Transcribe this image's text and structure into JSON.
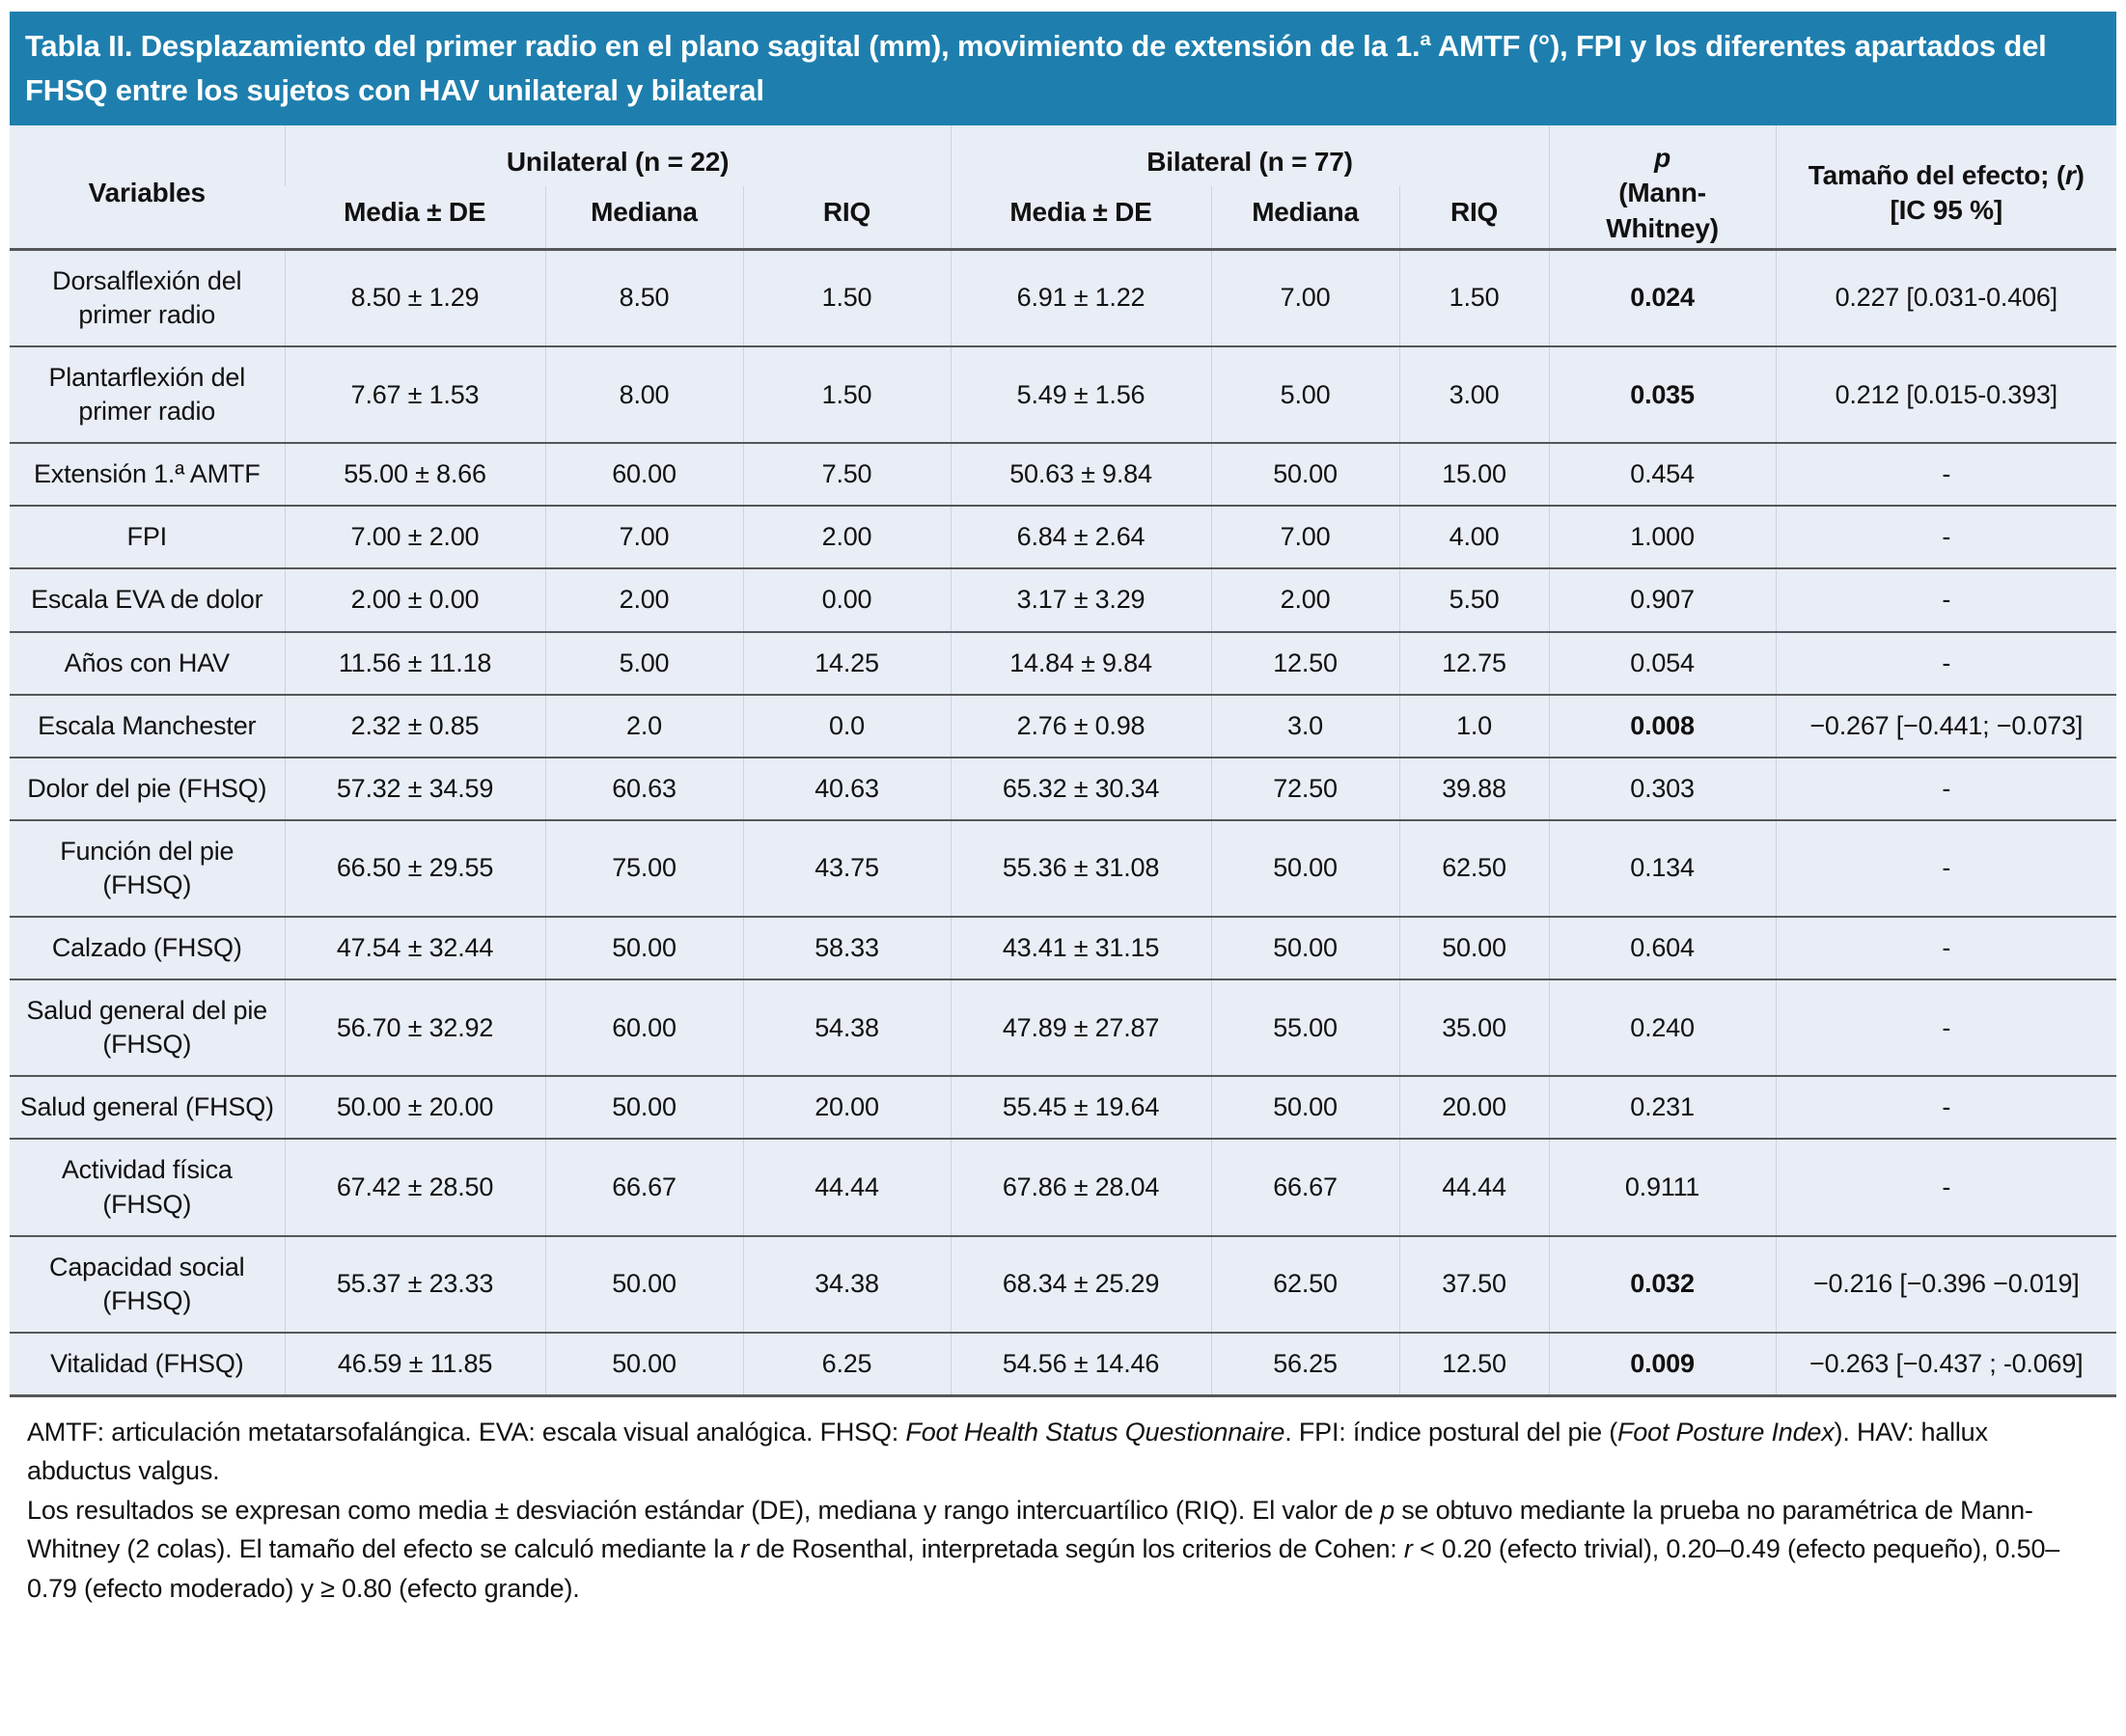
{
  "colors": {
    "header_bar": "#1e7fae",
    "table_background": "#e9edf6",
    "row_line": "#55565a"
  },
  "table": {
    "title": "Tabla II. Desplazamiento del primer radio en el plano sagital (mm), movimiento de extensión de la 1.ª AMTF (°), FPI y los diferentes apartados del FHSQ entre los sujetos con HAV unilateral y bilateral",
    "headers": {
      "variables": "Variables",
      "unilateral": "Unilateral (n = 22)",
      "bilateral": "Bilateral (n = 77)",
      "p_symbol": "p",
      "p_test": "(Mann-Whitney)",
      "effect_pre": "Tamaño del efecto; (",
      "effect_symbol": "r",
      "effect_post": ")",
      "effect_ci": "[IC 95 %]"
    },
    "sub_headers": [
      "Media ± DE",
      "Mediana",
      "RIQ",
      "Media ± DE",
      "Mediana",
      "RIQ"
    ],
    "rows": [
      {
        "label": "Dorsalflexión del primer radio",
        "uni": [
          "8.50 ± 1.29",
          "8.50",
          "1.50"
        ],
        "bil": [
          "6.91 ± 1.22",
          "7.00",
          "1.50"
        ],
        "p": "0.024",
        "p_bold": true,
        "effect": "0.227 [0.031-0.406]"
      },
      {
        "label": "Plantarflexión del primer radio",
        "uni": [
          "7.67 ± 1.53",
          "8.00",
          "1.50"
        ],
        "bil": [
          "5.49 ± 1.56",
          "5.00",
          "3.00"
        ],
        "p": "0.035",
        "p_bold": true,
        "effect": "0.212 [0.015-0.393]"
      },
      {
        "label": "Extensión 1.ª AMTF",
        "uni": [
          "55.00 ± 8.66",
          "60.00",
          "7.50"
        ],
        "bil": [
          "50.63 ± 9.84",
          "50.00",
          "15.00"
        ],
        "p": "0.454",
        "p_bold": false,
        "effect": "-"
      },
      {
        "label": "FPI",
        "uni": [
          "7.00 ± 2.00",
          "7.00",
          "2.00"
        ],
        "bil": [
          "6.84 ± 2.64",
          "7.00",
          "4.00"
        ],
        "p": "1.000",
        "p_bold": false,
        "effect": "-"
      },
      {
        "label": "Escala EVA de dolor",
        "uni": [
          "2.00 ± 0.00",
          "2.00",
          "0.00"
        ],
        "bil": [
          "3.17 ± 3.29",
          "2.00",
          "5.50"
        ],
        "p": "0.907",
        "p_bold": false,
        "effect": "-"
      },
      {
        "label": "Años con HAV",
        "uni": [
          "11.56 ± 11.18",
          "5.00",
          "14.25"
        ],
        "bil": [
          "14.84 ± 9.84",
          "12.50",
          "12.75"
        ],
        "p": "0.054",
        "p_bold": false,
        "effect": "-"
      },
      {
        "label": "Escala Manchester",
        "uni": [
          "2.32 ± 0.85",
          "2.0",
          "0.0"
        ],
        "bil": [
          "2.76 ± 0.98",
          "3.0",
          "1.0"
        ],
        "p": "0.008",
        "p_bold": true,
        "effect": "−0.267 [−0.441; −0.073]"
      },
      {
        "label": "Dolor del pie (FHSQ)",
        "uni": [
          "57.32 ± 34.59",
          "60.63",
          "40.63"
        ],
        "bil": [
          "65.32 ± 30.34",
          "72.50",
          "39.88"
        ],
        "p": "0.303",
        "p_bold": false,
        "effect": "-"
      },
      {
        "label": "Función del pie (FHSQ)",
        "uni": [
          "66.50 ± 29.55",
          "75.00",
          "43.75"
        ],
        "bil": [
          "55.36 ± 31.08",
          "50.00",
          "62.50"
        ],
        "p": "0.134",
        "p_bold": false,
        "effect": "-"
      },
      {
        "label": "Calzado (FHSQ)",
        "uni": [
          "47.54 ± 32.44",
          "50.00",
          "58.33"
        ],
        "bil": [
          "43.41 ± 31.15",
          "50.00",
          "50.00"
        ],
        "p": "0.604",
        "p_bold": false,
        "effect": "-"
      },
      {
        "label": "Salud general del pie (FHSQ)",
        "uni": [
          "56.70 ± 32.92",
          "60.00",
          "54.38"
        ],
        "bil": [
          "47.89 ± 27.87",
          "55.00",
          "35.00"
        ],
        "p": "0.240",
        "p_bold": false,
        "effect": "-"
      },
      {
        "label": "Salud general (FHSQ)",
        "uni": [
          "50.00 ± 20.00",
          "50.00",
          "20.00"
        ],
        "bil": [
          "55.45 ± 19.64",
          "50.00",
          "20.00"
        ],
        "p": "0.231",
        "p_bold": false,
        "effect": "-"
      },
      {
        "label": "Actividad física (FHSQ)",
        "uni": [
          "67.42 ± 28.50",
          "66.67",
          "44.44"
        ],
        "bil": [
          "67.86 ± 28.04",
          "66.67",
          "44.44"
        ],
        "p": "0.9111",
        "p_bold": false,
        "effect": "-"
      },
      {
        "label": "Capacidad social (FHSQ)",
        "uni": [
          "55.37 ± 23.33",
          "50.00",
          "34.38"
        ],
        "bil": [
          "68.34 ± 25.29",
          "62.50",
          "37.50"
        ],
        "p": "0.032",
        "p_bold": true,
        "effect": "−0.216 [−0.396 −0.019]"
      },
      {
        "label": "Vitalidad (FHSQ)",
        "uni": [
          "46.59 ± 11.85",
          "50.00",
          "6.25"
        ],
        "bil": [
          "54.56 ± 14.46",
          "56.25",
          "12.50"
        ],
        "p": "0.009",
        "p_bold": true,
        "effect": "−0.263 [−0.437 ; -0.069]"
      }
    ]
  },
  "footnotes": [
    {
      "segments": [
        {
          "text": "AMTF: articulación metatarsofalángica. EVA: escala visual analógica. FHSQ: "
        },
        {
          "text": "Foot Health Status Questionnaire",
          "italic": true
        },
        {
          "text": ". FPI: índice postural del pie ("
        },
        {
          "text": "Foot Posture Index",
          "italic": true
        },
        {
          "text": "). HAV: hallux abductus valgus."
        }
      ]
    },
    {
      "segments": [
        {
          "text": "Los resultados se expresan como media ± desviación estándar (DE), mediana y rango intercuartílico (RIQ). El valor de "
        },
        {
          "text": "p",
          "italic": true
        },
        {
          "text": " se obtuvo mediante la prueba no paramétrica de Mann-Whitney (2 colas). El tamaño del efecto se calculó mediante la "
        },
        {
          "text": "r",
          "italic": true
        },
        {
          "text": " de Rosenthal, interpretada según los criterios de Cohen: "
        },
        {
          "text": "r",
          "italic": true
        },
        {
          "text": " < 0.20 (efecto trivial), 0.20–0.49 (efecto pequeño), 0.50–0.79 (efecto moderado) y ≥ 0.80 (efecto grande)."
        }
      ]
    }
  ]
}
